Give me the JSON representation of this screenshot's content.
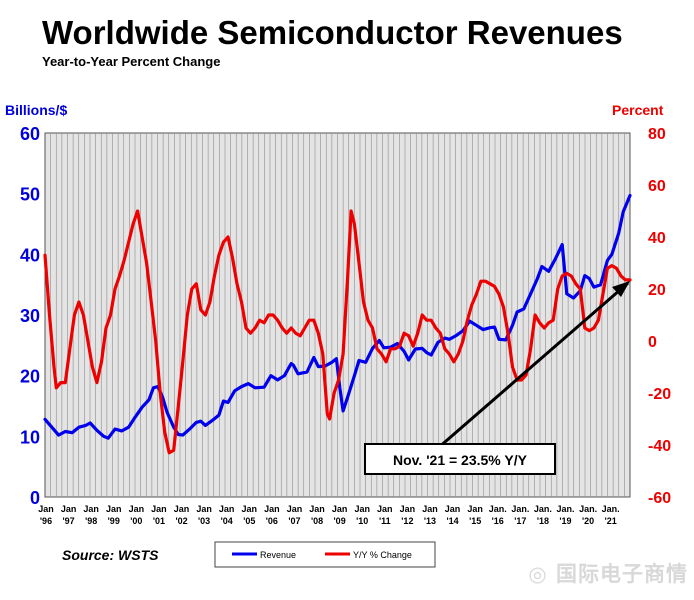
{
  "chart_data": {
    "type": "line",
    "title": "Worldwide Semiconductor Revenues",
    "subtitle": "Year-to-Year Percent Change",
    "y_left_label": "Billions/$",
    "y_right_label": "Percent",
    "y_left_range": [
      0,
      60
    ],
    "y_left_ticks": [
      "0",
      "10",
      "20",
      "30",
      "40",
      "50",
      "60"
    ],
    "y_right_range": [
      -60,
      80
    ],
    "y_right_ticks": [
      "-60",
      "-40",
      "-20",
      "0",
      "20",
      "40",
      "60",
      "80"
    ],
    "x_range": [
      1996,
      2021.9
    ],
    "x_ticks": [
      {
        "top": "Jan",
        "bottom": "'96"
      },
      {
        "top": "Jan",
        "bottom": "'97"
      },
      {
        "top": "Jan",
        "bottom": "'98"
      },
      {
        "top": "Jan",
        "bottom": "'99"
      },
      {
        "top": "Jan",
        "bottom": "'00"
      },
      {
        "top": "Jan",
        "bottom": "'01"
      },
      {
        "top": "Jan",
        "bottom": "'02"
      },
      {
        "top": "Jan",
        "bottom": "'03"
      },
      {
        "top": "Jan",
        "bottom": "'04"
      },
      {
        "top": "Jan",
        "bottom": "'05"
      },
      {
        "top": "Jan",
        "bottom": "'06"
      },
      {
        "top": "Jan",
        "bottom": "'07"
      },
      {
        "top": "Jan",
        "bottom": "'08"
      },
      {
        "top": "Jan",
        "bottom": "'09"
      },
      {
        "top": "Jan",
        "bottom": "'10"
      },
      {
        "top": "Jan",
        "bottom": "'11"
      },
      {
        "top": "Jan",
        "bottom": "'12"
      },
      {
        "top": "Jan",
        "bottom": "'13"
      },
      {
        "top": "Jan",
        "bottom": "'14"
      },
      {
        "top": "Jan",
        "bottom": "'15"
      },
      {
        "top": "Jan.",
        "bottom": "'16"
      },
      {
        "top": "Jan.",
        "bottom": "'17"
      },
      {
        "top": "Jan.",
        "bottom": "'18"
      },
      {
        "top": "Jan.",
        "bottom": "'19"
      },
      {
        "top": "Jan.",
        "bottom": "'20"
      },
      {
        "top": "Jan.",
        "bottom": "'21"
      }
    ],
    "grid": "vertical",
    "series": [
      {
        "name": "Revenue",
        "axis": "left",
        "color": "#0000ee",
        "points": [
          [
            1996.0,
            12.8
          ],
          [
            1996.3,
            11.5
          ],
          [
            1996.6,
            10.2
          ],
          [
            1996.9,
            10.8
          ],
          [
            1997.2,
            10.6
          ],
          [
            1997.5,
            11.5
          ],
          [
            1997.8,
            11.8
          ],
          [
            1998.0,
            12.2
          ],
          [
            1998.3,
            11.0
          ],
          [
            1998.6,
            10.0
          ],
          [
            1998.8,
            9.7
          ],
          [
            1999.1,
            11.2
          ],
          [
            1999.4,
            10.9
          ],
          [
            1999.7,
            11.5
          ],
          [
            2000.0,
            13.2
          ],
          [
            2000.3,
            14.8
          ],
          [
            2000.6,
            16.0
          ],
          [
            2000.8,
            18.0
          ],
          [
            2001.0,
            18.2
          ],
          [
            2001.2,
            16.5
          ],
          [
            2001.4,
            14.0
          ],
          [
            2001.7,
            11.5
          ],
          [
            2001.9,
            10.3
          ],
          [
            2002.1,
            10.2
          ],
          [
            2002.4,
            11.2
          ],
          [
            2002.7,
            12.3
          ],
          [
            2002.9,
            12.5
          ],
          [
            2003.1,
            11.8
          ],
          [
            2003.4,
            12.6
          ],
          [
            2003.7,
            13.5
          ],
          [
            2003.9,
            15.8
          ],
          [
            2004.1,
            15.6
          ],
          [
            2004.4,
            17.5
          ],
          [
            2004.7,
            18.2
          ],
          [
            2005.0,
            18.7
          ],
          [
            2005.3,
            18.0
          ],
          [
            2005.7,
            18.1
          ],
          [
            2006.0,
            20.0
          ],
          [
            2006.3,
            19.3
          ],
          [
            2006.6,
            20.0
          ],
          [
            2006.9,
            22.0
          ],
          [
            2007.0,
            21.7
          ],
          [
            2007.2,
            20.3
          ],
          [
            2007.6,
            20.6
          ],
          [
            2007.9,
            23.0
          ],
          [
            2008.1,
            21.5
          ],
          [
            2008.4,
            21.6
          ],
          [
            2008.7,
            22.2
          ],
          [
            2008.9,
            22.8
          ],
          [
            2009.05,
            18.0
          ],
          [
            2009.2,
            14.2
          ],
          [
            2009.4,
            16.5
          ],
          [
            2009.7,
            20.0
          ],
          [
            2009.9,
            22.5
          ],
          [
            2010.2,
            22.2
          ],
          [
            2010.5,
            24.5
          ],
          [
            2010.8,
            25.8
          ],
          [
            2011.0,
            24.6
          ],
          [
            2011.3,
            24.7
          ],
          [
            2011.6,
            25.3
          ],
          [
            2011.9,
            24.0
          ],
          [
            2012.1,
            22.6
          ],
          [
            2012.4,
            24.4
          ],
          [
            2012.7,
            24.5
          ],
          [
            2012.9,
            23.8
          ],
          [
            2013.1,
            23.4
          ],
          [
            2013.4,
            25.5
          ],
          [
            2013.7,
            26.2
          ],
          [
            2013.9,
            26.0
          ],
          [
            2014.2,
            26.6
          ],
          [
            2014.5,
            27.4
          ],
          [
            2014.8,
            29.0
          ],
          [
            2015.1,
            28.3
          ],
          [
            2015.4,
            27.6
          ],
          [
            2015.7,
            27.9
          ],
          [
            2015.9,
            28.0
          ],
          [
            2016.1,
            26.0
          ],
          [
            2016.4,
            25.9
          ],
          [
            2016.7,
            28.3
          ],
          [
            2016.9,
            30.5
          ],
          [
            2017.2,
            31.0
          ],
          [
            2017.5,
            33.5
          ],
          [
            2017.8,
            36.0
          ],
          [
            2018.0,
            38.0
          ],
          [
            2018.3,
            37.2
          ],
          [
            2018.6,
            39.3
          ],
          [
            2018.9,
            41.6
          ],
          [
            2019.1,
            33.5
          ],
          [
            2019.4,
            32.8
          ],
          [
            2019.7,
            34.0
          ],
          [
            2019.9,
            36.5
          ],
          [
            2020.1,
            36.0
          ],
          [
            2020.3,
            34.6
          ],
          [
            2020.6,
            35.0
          ],
          [
            2020.9,
            39.0
          ],
          [
            2021.1,
            40.0
          ],
          [
            2021.4,
            43.5
          ],
          [
            2021.6,
            47.0
          ],
          [
            2021.9,
            49.7
          ]
        ]
      },
      {
        "name": "Y/Y % Change",
        "axis": "right",
        "color": "#ee0000",
        "points": [
          [
            1996.0,
            33
          ],
          [
            1996.2,
            10
          ],
          [
            1996.4,
            -10
          ],
          [
            1996.5,
            -18
          ],
          [
            1996.7,
            -16
          ],
          [
            1996.9,
            -16
          ],
          [
            1997.1,
            -3
          ],
          [
            1997.3,
            10
          ],
          [
            1997.5,
            15
          ],
          [
            1997.7,
            10
          ],
          [
            1997.9,
            0
          ],
          [
            1998.1,
            -10
          ],
          [
            1998.3,
            -16
          ],
          [
            1998.5,
            -8
          ],
          [
            1998.7,
            5
          ],
          [
            1998.9,
            10
          ],
          [
            1999.1,
            20
          ],
          [
            1999.3,
            25
          ],
          [
            1999.5,
            31
          ],
          [
            1999.7,
            38
          ],
          [
            1999.9,
            45
          ],
          [
            2000.1,
            50
          ],
          [
            2000.3,
            40
          ],
          [
            2000.5,
            30
          ],
          [
            2000.7,
            15
          ],
          [
            2000.9,
            0
          ],
          [
            2001.1,
            -20
          ],
          [
            2001.3,
            -35
          ],
          [
            2001.5,
            -43
          ],
          [
            2001.7,
            -42
          ],
          [
            2001.9,
            -25
          ],
          [
            2002.1,
            -8
          ],
          [
            2002.3,
            10
          ],
          [
            2002.5,
            20
          ],
          [
            2002.7,
            22
          ],
          [
            2002.9,
            12
          ],
          [
            2003.1,
            10
          ],
          [
            2003.3,
            15
          ],
          [
            2003.5,
            25
          ],
          [
            2003.7,
            33
          ],
          [
            2003.9,
            38
          ],
          [
            2004.1,
            40
          ],
          [
            2004.3,
            32
          ],
          [
            2004.5,
            22
          ],
          [
            2004.7,
            15
          ],
          [
            2004.9,
            5
          ],
          [
            2005.1,
            3
          ],
          [
            2005.3,
            5
          ],
          [
            2005.5,
            8
          ],
          [
            2005.7,
            7
          ],
          [
            2005.9,
            10
          ],
          [
            2006.1,
            10
          ],
          [
            2006.3,
            8
          ],
          [
            2006.5,
            5
          ],
          [
            2006.7,
            3
          ],
          [
            2006.9,
            5
          ],
          [
            2007.1,
            3
          ],
          [
            2007.3,
            2
          ],
          [
            2007.5,
            5
          ],
          [
            2007.7,
            8
          ],
          [
            2007.9,
            8
          ],
          [
            2008.1,
            3
          ],
          [
            2008.3,
            -5
          ],
          [
            2008.5,
            -28
          ],
          [
            2008.6,
            -30
          ],
          [
            2008.8,
            -20
          ],
          [
            2009.0,
            -15
          ],
          [
            2009.2,
            -5
          ],
          [
            2009.4,
            25
          ],
          [
            2009.55,
            50
          ],
          [
            2009.7,
            45
          ],
          [
            2009.9,
            30
          ],
          [
            2010.1,
            15
          ],
          [
            2010.3,
            8
          ],
          [
            2010.5,
            5
          ],
          [
            2010.7,
            -3
          ],
          [
            2010.9,
            -5
          ],
          [
            2011.1,
            -8
          ],
          [
            2011.3,
            -3
          ],
          [
            2011.5,
            -3
          ],
          [
            2011.7,
            -2
          ],
          [
            2011.9,
            3
          ],
          [
            2012.1,
            2
          ],
          [
            2012.3,
            -2
          ],
          [
            2012.5,
            3
          ],
          [
            2012.7,
            10
          ],
          [
            2012.9,
            8
          ],
          [
            2013.1,
            8
          ],
          [
            2013.3,
            5
          ],
          [
            2013.5,
            3
          ],
          [
            2013.7,
            -3
          ],
          [
            2013.9,
            -5
          ],
          [
            2014.1,
            -8
          ],
          [
            2014.3,
            -5
          ],
          [
            2014.5,
            0
          ],
          [
            2014.7,
            8
          ],
          [
            2014.9,
            14
          ],
          [
            2015.1,
            18
          ],
          [
            2015.3,
            23
          ],
          [
            2015.5,
            23
          ],
          [
            2015.7,
            22
          ],
          [
            2015.9,
            21
          ],
          [
            2016.1,
            18
          ],
          [
            2016.3,
            13
          ],
          [
            2016.5,
            3
          ],
          [
            2016.7,
            -10
          ],
          [
            2016.9,
            -15
          ],
          [
            2017.1,
            -15
          ],
          [
            2017.3,
            -13
          ],
          [
            2017.5,
            -3
          ],
          [
            2017.7,
            10
          ],
          [
            2017.9,
            7
          ],
          [
            2018.1,
            5
          ],
          [
            2018.3,
            7
          ],
          [
            2018.5,
            8
          ],
          [
            2018.7,
            20
          ],
          [
            2018.9,
            25
          ],
          [
            2019.1,
            26
          ],
          [
            2019.3,
            25
          ],
          [
            2019.5,
            22
          ],
          [
            2019.7,
            20
          ],
          [
            2019.9,
            5
          ],
          [
            2020.1,
            4
          ],
          [
            2020.3,
            5
          ],
          [
            2020.5,
            8
          ],
          [
            2020.7,
            18
          ],
          [
            2020.9,
            28
          ],
          [
            2021.1,
            29
          ],
          [
            2021.3,
            28
          ],
          [
            2021.5,
            25
          ],
          [
            2021.7,
            23.5
          ],
          [
            2021.9,
            23.5
          ]
        ]
      }
    ],
    "annotation": {
      "text": "Nov. '21 = 23.5% Y/Y"
    },
    "legend": {
      "position": "bottom-center"
    },
    "source": "Source: WSTS"
  }
}
